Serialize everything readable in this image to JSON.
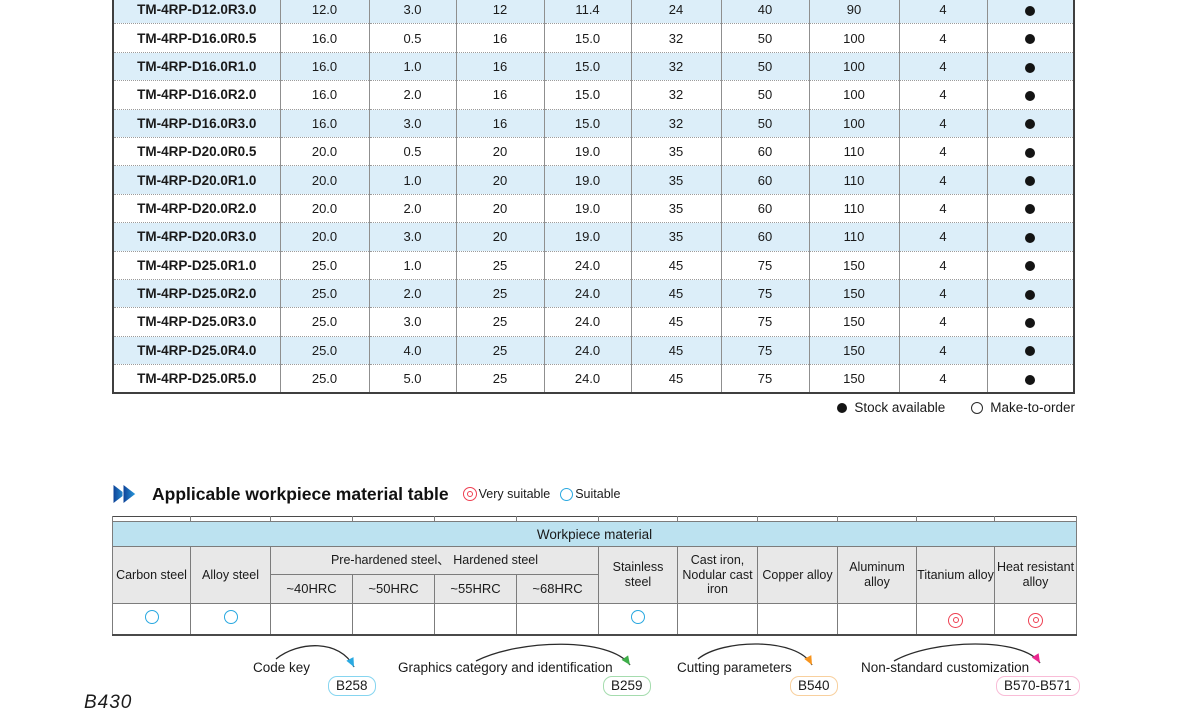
{
  "spec_table": {
    "rows": [
      {
        "model": "TM-4RP-D12.0R3.0",
        "values": [
          "12.0",
          "3.0",
          "12",
          "11.4",
          "24",
          "40",
          "90",
          "4"
        ],
        "stock": "available"
      },
      {
        "model": "TM-4RP-D16.0R0.5",
        "values": [
          "16.0",
          "0.5",
          "16",
          "15.0",
          "32",
          "50",
          "100",
          "4"
        ],
        "stock": "available"
      },
      {
        "model": "TM-4RP-D16.0R1.0",
        "values": [
          "16.0",
          "1.0",
          "16",
          "15.0",
          "32",
          "50",
          "100",
          "4"
        ],
        "stock": "available"
      },
      {
        "model": "TM-4RP-D16.0R2.0",
        "values": [
          "16.0",
          "2.0",
          "16",
          "15.0",
          "32",
          "50",
          "100",
          "4"
        ],
        "stock": "available"
      },
      {
        "model": "TM-4RP-D16.0R3.0",
        "values": [
          "16.0",
          "3.0",
          "16",
          "15.0",
          "32",
          "50",
          "100",
          "4"
        ],
        "stock": "available"
      },
      {
        "model": "TM-4RP-D20.0R0.5",
        "values": [
          "20.0",
          "0.5",
          "20",
          "19.0",
          "35",
          "60",
          "110",
          "4"
        ],
        "stock": "available"
      },
      {
        "model": "TM-4RP-D20.0R1.0",
        "values": [
          "20.0",
          "1.0",
          "20",
          "19.0",
          "35",
          "60",
          "110",
          "4"
        ],
        "stock": "available"
      },
      {
        "model": "TM-4RP-D20.0R2.0",
        "values": [
          "20.0",
          "2.0",
          "20",
          "19.0",
          "35",
          "60",
          "110",
          "4"
        ],
        "stock": "available"
      },
      {
        "model": "TM-4RP-D20.0R3.0",
        "values": [
          "20.0",
          "3.0",
          "20",
          "19.0",
          "35",
          "60",
          "110",
          "4"
        ],
        "stock": "available"
      },
      {
        "model": "TM-4RP-D25.0R1.0",
        "values": [
          "25.0",
          "1.0",
          "25",
          "24.0",
          "45",
          "75",
          "150",
          "4"
        ],
        "stock": "available"
      },
      {
        "model": "TM-4RP-D25.0R2.0",
        "values": [
          "25.0",
          "2.0",
          "25",
          "24.0",
          "45",
          "75",
          "150",
          "4"
        ],
        "stock": "available"
      },
      {
        "model": "TM-4RP-D25.0R3.0",
        "values": [
          "25.0",
          "3.0",
          "25",
          "24.0",
          "45",
          "75",
          "150",
          "4"
        ],
        "stock": "available"
      },
      {
        "model": "TM-4RP-D25.0R4.0",
        "values": [
          "25.0",
          "4.0",
          "25",
          "24.0",
          "45",
          "75",
          "150",
          "4"
        ],
        "stock": "available"
      },
      {
        "model": "TM-4RP-D25.0R5.0",
        "values": [
          "25.0",
          "5.0",
          "25",
          "24.0",
          "45",
          "75",
          "150",
          "4"
        ],
        "stock": "available"
      }
    ]
  },
  "stock_legend": {
    "available": "Stock available",
    "make_to_order": "Make-to-order"
  },
  "material_section": {
    "title": "Applicable workpiece material table",
    "very_suitable": "Very suitable",
    "suitable": "Suitable"
  },
  "material_table": {
    "band": "Workpiece material",
    "carbon": "Carbon steel",
    "alloy": "Alloy steel",
    "prehardened": "Pre-hardened steel、 Hardened steel",
    "hrc": [
      "~40HRC",
      "~50HRC",
      "~55HRC",
      "~68HRC"
    ],
    "stainless": "Stainless steel",
    "cast_iron": "Cast iron, Nodular cast iron",
    "copper": "Copper alloy",
    "aluminum": "Aluminum alloy",
    "titanium": "Titanium alloy",
    "heat_resistant": "Heat resistant alloy",
    "ratings": [
      "suitable",
      "suitable",
      "",
      "",
      "",
      "",
      "suitable",
      "",
      "",
      "",
      "very",
      "very"
    ]
  },
  "footer_links": [
    {
      "label": "Code key",
      "page": "B258",
      "border": "#86d5f0",
      "arrow": "#2aa9e1"
    },
    {
      "label": "Graphics category and identification",
      "page": "B259",
      "border": "#a5dcae",
      "arrow": "#3fae49"
    },
    {
      "label": "Cutting parameters",
      "page": "B540",
      "border": "#f8d09e",
      "arrow": "#f7941d"
    },
    {
      "label": "Non-standard customization",
      "page": "B570-B571",
      "border": "#f9bcd7",
      "arrow": "#ec268f"
    }
  ],
  "page_number": "B430",
  "colors": {
    "row_alt_blue": "#dceef9",
    "workpiece_band_blue": "#bce2f0",
    "header_gray": "#e8e8e8",
    "suitable_blue": "#29a8e0",
    "very_suitable_red": "#ee3f51",
    "chevron_dark_blue": "#114a9e",
    "chevron_light_blue": "#1e8fd8"
  }
}
